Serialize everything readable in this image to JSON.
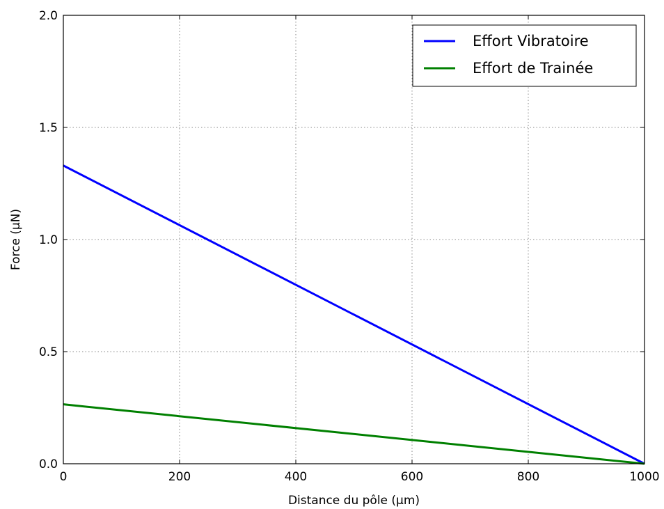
{
  "chart_data": {
    "type": "line",
    "xlabel": "Distance du pôle (μm)",
    "ylabel": "Force (μN)",
    "xlim": [
      0,
      1000
    ],
    "ylim": [
      0,
      2.0
    ],
    "x_ticks": [
      0,
      200,
      400,
      600,
      800,
      1000
    ],
    "y_ticks": [
      0.0,
      0.5,
      1.0,
      1.5,
      2.0
    ],
    "x_tick_labels": [
      "0",
      "200",
      "400",
      "600",
      "800",
      "1000"
    ],
    "y_tick_labels": [
      "0.0",
      "0.5",
      "1.0",
      "1.5",
      "2.0"
    ],
    "grid": true,
    "grid_style": "dotted",
    "legend_position": "top-right",
    "series": [
      {
        "name": "Effort Vibratoire",
        "color": "#0000ff",
        "x": [
          0,
          1000
        ],
        "y": [
          1.33,
          0.0
        ]
      },
      {
        "name": "Effort de Trainée",
        "color": "#008000",
        "x": [
          0,
          1000
        ],
        "y": [
          0.265,
          0.0
        ]
      }
    ]
  }
}
